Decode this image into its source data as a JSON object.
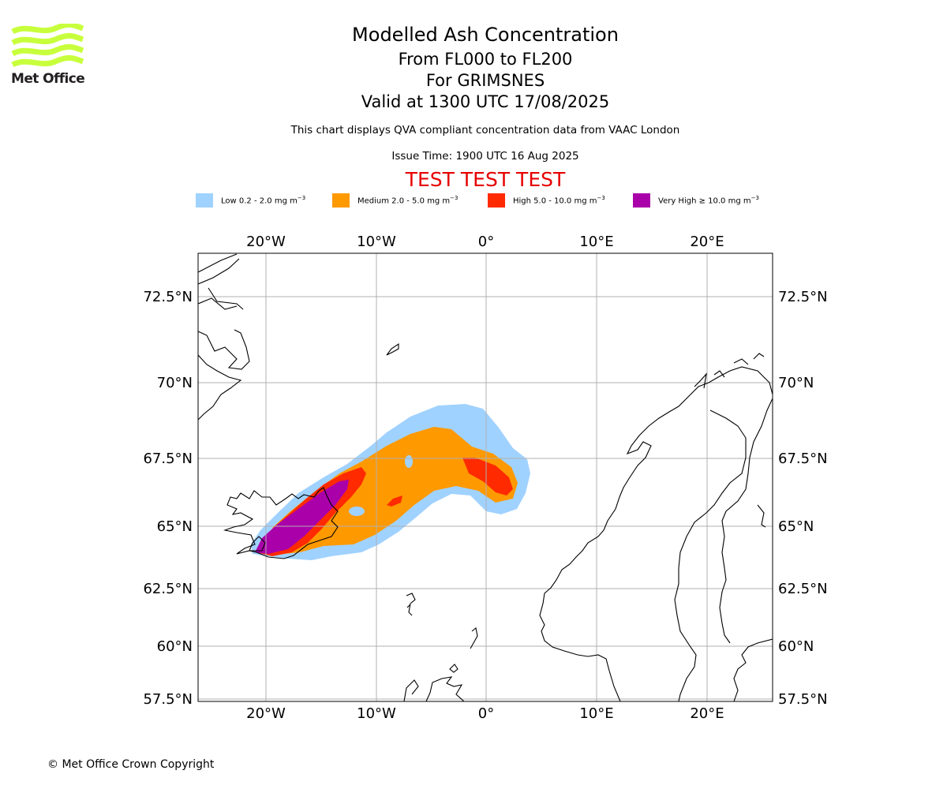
{
  "header": {
    "title": "Modelled Ash Concentration",
    "levels": "From FL000 to FL200",
    "volcano": "For GRIMSNES",
    "valid": "Valid at 1300 UTC 17/08/2025",
    "description": "This chart displays QVA compliant concentration data from VAAC London",
    "issue_time": "Issue Time: 1900 UTC 16 Aug 2025",
    "test_banner": "TEST TEST TEST",
    "test_color": "#e60000"
  },
  "logo": {
    "name": "Met Office",
    "color": "#c8ff3c"
  },
  "footer": {
    "copyright": "© Met Office Crown Copyright"
  },
  "legend": [
    {
      "label_prefix": "Low 0.2 - 2.0 mg m",
      "exp": "−3",
      "color": "#a0d2ff"
    },
    {
      "label_prefix": "Medium 2.0 - 5.0 mg m",
      "exp": "−3",
      "color": "#ff9900"
    },
    {
      "label_prefix": "High 5.0 - 10.0 mg m",
      "exp": "−3",
      "color": "#ff2a00"
    },
    {
      "label_prefix": "Very High  ≥  10.0 mg m",
      "exp": "−3",
      "color": "#aa00aa"
    }
  ],
  "map": {
    "lon_ticks": [
      "20°W",
      "10°W",
      "0°",
      "10°E",
      "20°E"
    ],
    "lat_ticks": [
      "72.5°N",
      "70°N",
      "67.5°N",
      "65°N",
      "62.5°N",
      "60°N",
      "57.5°N"
    ]
  }
}
